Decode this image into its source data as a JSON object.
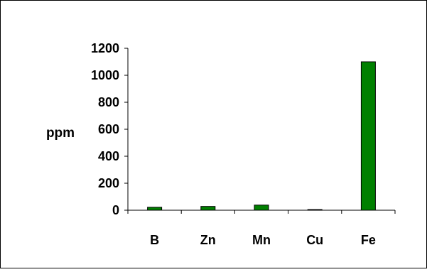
{
  "chart_data": {
    "type": "bar",
    "title": "",
    "xlabel": "",
    "ylabel": "ppm",
    "categories": [
      "B",
      "Zn",
      "Mn",
      "Cu",
      "Fe"
    ],
    "values": [
      22,
      28,
      38,
      5,
      1100
    ],
    "ylim": [
      0,
      1200
    ],
    "yticks": [
      0,
      200,
      400,
      600,
      800,
      1000,
      1200
    ],
    "ytick_labels": [
      "0",
      "200",
      "400",
      "600",
      "800",
      "1000",
      "1200"
    ],
    "grid": false,
    "legend": "none",
    "colors": {
      "bar_fill": "#008000",
      "bar_stroke": "#000000",
      "axis": "#000000",
      "frame": "#000000",
      "background": "#ffffff"
    }
  }
}
